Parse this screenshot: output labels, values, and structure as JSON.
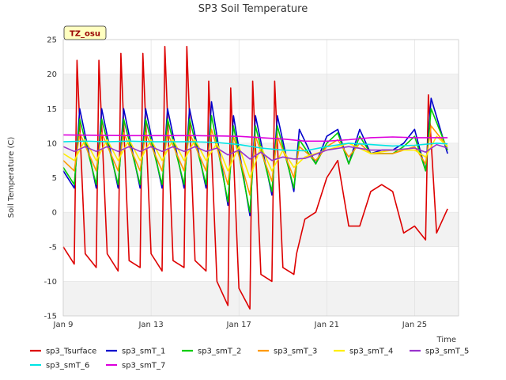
{
  "chart_data": {
    "type": "line",
    "title": "SP3 Soil Temperature",
    "xlabel": "Time",
    "ylabel": "Soil Temperature (C)",
    "badge": "TZ_osu",
    "xlim": [
      "Jan 9",
      "Jan 27"
    ],
    "ylim": [
      -15,
      25
    ],
    "x_ticks": [
      "Jan 9",
      "Jan 13",
      "Jan 17",
      "Jan 21",
      "Jan 25"
    ],
    "y_ticks": [
      -15,
      -10,
      -5,
      0,
      5,
      10,
      15,
      20,
      25
    ],
    "grid": true,
    "legend_position": "bottom",
    "series": [
      {
        "name": "sp3_Tsurface",
        "color": "#dd0000",
        "x": [
          "Jan 9 00:00",
          "Jan 9 12:00",
          "Jan 9 15:00",
          "Jan 10 00:00",
          "Jan 10 12:00",
          "Jan 10 15:00",
          "Jan 11 00:00",
          "Jan 11 12:00",
          "Jan 11 15:00",
          "Jan 12 00:00",
          "Jan 12 12:00",
          "Jan 12 15:00",
          "Jan 13 00:00",
          "Jan 13 12:00",
          "Jan 13 15:00",
          "Jan 14 00:00",
          "Jan 14 12:00",
          "Jan 14 15:00",
          "Jan 15 00:00",
          "Jan 15 12:00",
          "Jan 15 15:00",
          "Jan 16 00:00",
          "Jan 16 12:00",
          "Jan 16 15:00",
          "Jan 17 00:00",
          "Jan 17 12:00",
          "Jan 17 15:00",
          "Jan 18 00:00",
          "Jan 18 12:00",
          "Jan 18 15:00",
          "Jan 19 00:00",
          "Jan 19 12:00",
          "Jan 19 15:00",
          "Jan 20 00:00",
          "Jan 20 12:00",
          "Jan 21 00:00",
          "Jan 21 12:00",
          "Jan 22 00:00",
          "Jan 22 12:00",
          "Jan 23 00:00",
          "Jan 23 12:00",
          "Jan 24 00:00",
          "Jan 24 12:00",
          "Jan 25 00:00",
          "Jan 25 12:00",
          "Jan 25 15:00",
          "Jan 26 00:00",
          "Jan 26 12:00"
        ],
        "y": [
          -5,
          -7.5,
          22,
          -6,
          -8,
          22,
          -6,
          -8.5,
          23,
          -7,
          -8,
          23,
          -6,
          -8.5,
          24,
          -7,
          -8,
          24,
          -7,
          -8.5,
          19,
          -10,
          -13.5,
          18,
          -11,
          -14,
          19,
          -9,
          -10,
          19,
          -8,
          -9,
          -6,
          -1,
          0,
          5,
          7.5,
          -2,
          -2,
          3,
          4,
          3,
          -3,
          -2,
          -4,
          17,
          -3,
          0.5
        ]
      },
      {
        "name": "sp3_smT_1",
        "color": "#0000cc",
        "x": [
          "Jan 9 00:00",
          "Jan 9 12:00",
          "Jan 9 18:00",
          "Jan 10 12:00",
          "Jan 10 18:00",
          "Jan 11 12:00",
          "Jan 11 18:00",
          "Jan 12 12:00",
          "Jan 12 18:00",
          "Jan 13 12:00",
          "Jan 13 18:00",
          "Jan 14 12:00",
          "Jan 14 18:00",
          "Jan 15 12:00",
          "Jan 15 18:00",
          "Jan 16 12:00",
          "Jan 16 18:00",
          "Jan 17 12:00",
          "Jan 17 18:00",
          "Jan 18 12:00",
          "Jan 18 18:00",
          "Jan 19 12:00",
          "Jan 19 18:00",
          "Jan 20 12:00",
          "Jan 21 00:00",
          "Jan 21 12:00",
          "Jan 22 00:00",
          "Jan 22 12:00",
          "Jan 23 00:00",
          "Jan 23 12:00",
          "Jan 24 00:00",
          "Jan 24 12:00",
          "Jan 25 00:00",
          "Jan 25 12:00",
          "Jan 25 18:00",
          "Jan 26 12:00"
        ],
        "y": [
          6,
          3.5,
          15,
          3.5,
          15,
          3.5,
          15,
          3.5,
          15,
          3.5,
          15,
          3.5,
          15,
          3.5,
          16,
          1,
          14,
          -0.5,
          14,
          2.5,
          14,
          3,
          12,
          7,
          11,
          12,
          7,
          12,
          8.5,
          9,
          9,
          10,
          12,
          6,
          16.5,
          8.5
        ]
      },
      {
        "name": "sp3_smT_2",
        "color": "#00cc00",
        "x": [
          "Jan 9 00:00",
          "Jan 9 12:00",
          "Jan 9 18:00",
          "Jan 10 12:00",
          "Jan 10 18:00",
          "Jan 11 12:00",
          "Jan 11 18:00",
          "Jan 12 12:00",
          "Jan 12 18:00",
          "Jan 13 12:00",
          "Jan 13 18:00",
          "Jan 14 12:00",
          "Jan 14 18:00",
          "Jan 15 12:00",
          "Jan 15 18:00",
          "Jan 16 12:00",
          "Jan 16 18:00",
          "Jan 17 12:00",
          "Jan 17 18:00",
          "Jan 18 12:00",
          "Jan 18 18:00",
          "Jan 19 12:00",
          "Jan 19 18:00",
          "Jan 20 12:00",
          "Jan 21 00:00",
          "Jan 21 12:00",
          "Jan 22 00:00",
          "Jan 22 12:00",
          "Jan 23 00:00",
          "Jan 23 12:00",
          "Jan 24 00:00",
          "Jan 24 12:00",
          "Jan 25 00:00",
          "Jan 25 12:00",
          "Jan 25 18:00",
          "Jan 26 12:00"
        ],
        "y": [
          6.5,
          4,
          13.5,
          4,
          13.5,
          4,
          13.5,
          4,
          13.5,
          4,
          13.5,
          4,
          13.5,
          4,
          14,
          1.5,
          12.5,
          0,
          12.5,
          3,
          12.5,
          3.5,
          10.5,
          7,
          10,
          11.5,
          7,
          11,
          8.5,
          8.5,
          8.5,
          9.5,
          11,
          6,
          15,
          9
        ]
      },
      {
        "name": "sp3_smT_3",
        "color": "#ff9900",
        "x": [
          "Jan 9 00:00",
          "Jan 9 12:00",
          "Jan 9 18:00",
          "Jan 10 12:00",
          "Jan 10 18:00",
          "Jan 11 12:00",
          "Jan 11 18:00",
          "Jan 12 12:00",
          "Jan 12 18:00",
          "Jan 13 12:00",
          "Jan 13 18:00",
          "Jan 14 12:00",
          "Jan 14 18:00",
          "Jan 15 12:00",
          "Jan 15 18:00",
          "Jan 16 12:00",
          "Jan 16 18:00",
          "Jan 17 12:00",
          "Jan 17 18:00",
          "Jan 18 12:00",
          "Jan 18 18:00",
          "Jan 19 12:00",
          "Jan 19 18:00",
          "Jan 20 12:00",
          "Jan 21 00:00",
          "Jan 21 12:00",
          "Jan 22 00:00",
          "Jan 22 12:00",
          "Jan 23 00:00",
          "Jan 23 12:00",
          "Jan 24 00:00",
          "Jan 24 12:00",
          "Jan 25 00:00",
          "Jan 25 12:00",
          "Jan 25 18:00",
          "Jan 26 12:00"
        ],
        "y": [
          7.5,
          6,
          11.5,
          6,
          11.5,
          6,
          11.5,
          6,
          11.5,
          6,
          11.5,
          6,
          11.5,
          6,
          12,
          4,
          11,
          2.5,
          11,
          4.5,
          11,
          5,
          9.5,
          7.5,
          9.5,
          10.5,
          8,
          10,
          8.5,
          8.5,
          8.5,
          9,
          9.5,
          7,
          12.5,
          9.5
        ]
      },
      {
        "name": "sp3_smT_4",
        "color": "#ffee00",
        "x": [
          "Jan 9 00:00",
          "Jan 9 12:00",
          "Jan 10 00:00",
          "Jan 10 12:00",
          "Jan 11 00:00",
          "Jan 11 12:00",
          "Jan 12 00:00",
          "Jan 12 12:00",
          "Jan 13 00:00",
          "Jan 13 12:00",
          "Jan 14 00:00",
          "Jan 14 12:00",
          "Jan 15 00:00",
          "Jan 15 12:00",
          "Jan 16 00:00",
          "Jan 16 12:00",
          "Jan 17 00:00",
          "Jan 17 12:00",
          "Jan 18 00:00",
          "Jan 18 12:00",
          "Jan 19 00:00",
          "Jan 19 12:00",
          "Jan 20 00:00",
          "Jan 21 00:00",
          "Jan 22 00:00",
          "Jan 23 00:00",
          "Jan 24 00:00",
          "Jan 25 00:00",
          "Jan 25 12:00",
          "Jan 26 00:00",
          "Jan 26 12:00"
        ],
        "y": [
          8.5,
          7.5,
          10.5,
          7.5,
          10.5,
          7.5,
          10.5,
          7.5,
          10.5,
          7.5,
          10.5,
          7.5,
          10.5,
          7.5,
          10,
          6,
          9.5,
          5,
          9.5,
          6,
          9,
          6.5,
          8,
          9,
          10,
          8.5,
          9,
          9,
          8,
          11,
          9.5
        ]
      },
      {
        "name": "sp3_smT_5",
        "color": "#9933cc",
        "x": [
          "Jan 9 00:00",
          "Jan 9 12:00",
          "Jan 10 00:00",
          "Jan 10 12:00",
          "Jan 11 00:00",
          "Jan 11 12:00",
          "Jan 12 00:00",
          "Jan 12 12:00",
          "Jan 13 00:00",
          "Jan 13 12:00",
          "Jan 14 00:00",
          "Jan 14 12:00",
          "Jan 15 00:00",
          "Jan 15 12:00",
          "Jan 16 00:00",
          "Jan 16 12:00",
          "Jan 17 00:00",
          "Jan 17 12:00",
          "Jan 18 00:00",
          "Jan 18 12:00",
          "Jan 19 00:00",
          "Jan 19 12:00",
          "Jan 20 00:00",
          "Jan 21 00:00",
          "Jan 22 00:00",
          "Jan 23 00:00",
          "Jan 24 00:00",
          "Jan 25 00:00",
          "Jan 25 12:00",
          "Jan 26 00:00",
          "Jan 26 12:00"
        ],
        "y": [
          9.5,
          8.8,
          9.5,
          8.8,
          9.5,
          8.8,
          9.5,
          8.8,
          9.5,
          8.8,
          9.5,
          8.8,
          9.5,
          8.8,
          9.3,
          8.3,
          9,
          7.7,
          8.7,
          7.5,
          8,
          7.7,
          7.8,
          9,
          9.5,
          9,
          9,
          9.3,
          8.7,
          9.8,
          9.3
        ]
      },
      {
        "name": "sp3_smT_6",
        "color": "#00e5e5",
        "x": [
          "Jan 9 00:00",
          "Jan 10 00:00",
          "Jan 11 00:00",
          "Jan 12 00:00",
          "Jan 13 00:00",
          "Jan 14 00:00",
          "Jan 15 00:00",
          "Jan 16 00:00",
          "Jan 17 00:00",
          "Jan 18 00:00",
          "Jan 19 00:00",
          "Jan 20 00:00",
          "Jan 21 00:00",
          "Jan 22 00:00",
          "Jan 23 00:00",
          "Jan 24 00:00",
          "Jan 25 00:00",
          "Jan 26 00:00",
          "Jan 26 12:00"
        ],
        "y": [
          10.2,
          10.3,
          10.2,
          10.3,
          10.2,
          10.2,
          10.2,
          10.1,
          9.8,
          9.3,
          9,
          8.9,
          9.5,
          10,
          9.8,
          9.6,
          9.7,
          10,
          9.9
        ]
      },
      {
        "name": "sp3_smT_7",
        "color": "#dd00dd",
        "x": [
          "Jan 9 00:00",
          "Jan 12 00:00",
          "Jan 15 00:00",
          "Jan 16 00:00",
          "Jan 17 00:00",
          "Jan 18 00:00",
          "Jan 19 00:00",
          "Jan 20 00:00",
          "Jan 21 00:00",
          "Jan 22 00:00",
          "Jan 23 00:00",
          "Jan 24 00:00",
          "Jan 25 00:00",
          "Jan 26 00:00",
          "Jan 26 12:00"
        ],
        "y": [
          11.2,
          11.1,
          11.1,
          11.05,
          11,
          10.8,
          10.6,
          10.3,
          10.3,
          10.5,
          10.8,
          10.9,
          10.8,
          10.8,
          10.8
        ]
      }
    ]
  }
}
